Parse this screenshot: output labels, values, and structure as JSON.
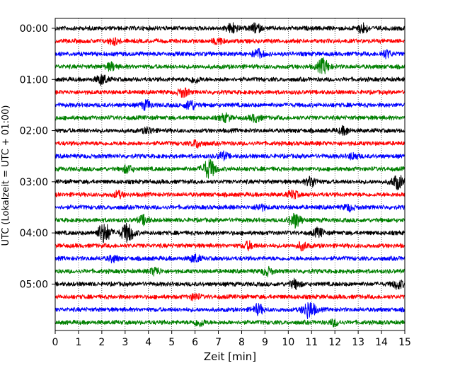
{
  "chart_data": {
    "type": "line",
    "title": "",
    "xlabel": "Zeit  [min]",
    "ylabel": "UTC (Lokalzeit = UTC + 01:00)",
    "xlim": [
      0,
      15
    ],
    "x_ticks": [
      "0",
      "1",
      "2",
      "3",
      "4",
      "5",
      "6",
      "7",
      "8",
      "9",
      "10",
      "11",
      "12",
      "13",
      "14",
      "15"
    ],
    "y_ticks": [
      "00:00",
      "01:00",
      "02:00",
      "03:00",
      "04:00",
      "05:00"
    ],
    "grid": "vertical dotted",
    "trace_colors": [
      "#000000",
      "#ff0000",
      "#0000ff",
      "#008000"
    ],
    "series": [
      {
        "start": "00:00",
        "color": "#000000",
        "events": [
          {
            "x": 7.6,
            "a": 0.4
          },
          {
            "x": 8.6,
            "a": 0.35
          },
          {
            "x": 13.2,
            "a": 0.4
          }
        ]
      },
      {
        "start": "00:15",
        "color": "#ff0000",
        "events": [
          {
            "x": 2.5,
            "a": 0.25
          },
          {
            "x": 7.0,
            "a": 0.25
          }
        ]
      },
      {
        "start": "00:30",
        "color": "#0000ff",
        "events": [
          {
            "x": 8.7,
            "a": 0.35
          },
          {
            "x": 14.2,
            "a": 0.3
          }
        ]
      },
      {
        "start": "00:45",
        "color": "#008000",
        "events": [
          {
            "x": 2.4,
            "a": 0.3
          },
          {
            "x": 11.5,
            "a": 0.6
          }
        ]
      },
      {
        "start": "01:00",
        "color": "#000000",
        "events": [
          {
            "x": 2.0,
            "a": 0.4
          },
          {
            "x": 6.0,
            "a": 0.25
          }
        ]
      },
      {
        "start": "01:15",
        "color": "#ff0000",
        "events": [
          {
            "x": 5.5,
            "a": 0.35
          }
        ]
      },
      {
        "start": "01:30",
        "color": "#0000ff",
        "events": [
          {
            "x": 3.9,
            "a": 0.35
          },
          {
            "x": 5.8,
            "a": 0.4
          }
        ]
      },
      {
        "start": "01:45",
        "color": "#008000",
        "events": [
          {
            "x": 7.3,
            "a": 0.3
          },
          {
            "x": 8.6,
            "a": 0.3
          }
        ]
      },
      {
        "start": "02:00",
        "color": "#000000",
        "events": [
          {
            "x": 4.0,
            "a": 0.25
          },
          {
            "x": 12.4,
            "a": 0.3
          }
        ]
      },
      {
        "start": "02:15",
        "color": "#ff0000",
        "events": [
          {
            "x": 6.1,
            "a": 0.3
          }
        ]
      },
      {
        "start": "02:30",
        "color": "#0000ff",
        "events": [
          {
            "x": 7.2,
            "a": 0.3
          },
          {
            "x": 12.8,
            "a": 0.25
          }
        ]
      },
      {
        "start": "02:45",
        "color": "#008000",
        "events": [
          {
            "x": 6.6,
            "a": 0.75
          },
          {
            "x": 3.1,
            "a": 0.3
          }
        ]
      },
      {
        "start": "03:00",
        "color": "#000000",
        "events": [
          {
            "x": 11.0,
            "a": 0.4
          },
          {
            "x": 14.7,
            "a": 0.55
          }
        ]
      },
      {
        "start": "03:15",
        "color": "#ff0000",
        "events": [
          {
            "x": 2.7,
            "a": 0.25
          },
          {
            "x": 10.2,
            "a": 0.3
          }
        ]
      },
      {
        "start": "03:30",
        "color": "#0000ff",
        "events": [
          {
            "x": 8.8,
            "a": 0.25
          },
          {
            "x": 12.6,
            "a": 0.25
          }
        ]
      },
      {
        "start": "03:45",
        "color": "#008000",
        "events": [
          {
            "x": 10.3,
            "a": 0.6
          },
          {
            "x": 3.8,
            "a": 0.35
          }
        ]
      },
      {
        "start": "04:00",
        "color": "#000000",
        "events": [
          {
            "x": 2.1,
            "a": 0.8
          },
          {
            "x": 3.1,
            "a": 0.75
          },
          {
            "x": 11.3,
            "a": 0.35
          }
        ]
      },
      {
        "start": "04:15",
        "color": "#ff0000",
        "events": [
          {
            "x": 8.3,
            "a": 0.3
          },
          {
            "x": 10.6,
            "a": 0.3
          }
        ]
      },
      {
        "start": "04:30",
        "color": "#0000ff",
        "events": [
          {
            "x": 6.0,
            "a": 0.3
          },
          {
            "x": 2.5,
            "a": 0.25
          }
        ]
      },
      {
        "start": "04:45",
        "color": "#008000",
        "events": [
          {
            "x": 4.3,
            "a": 0.3
          },
          {
            "x": 9.1,
            "a": 0.3
          }
        ]
      },
      {
        "start": "05:00",
        "color": "#000000",
        "events": [
          {
            "x": 10.3,
            "a": 0.35
          },
          {
            "x": 14.7,
            "a": 0.35
          }
        ]
      },
      {
        "start": "05:15",
        "color": "#ff0000",
        "events": [
          {
            "x": 6.0,
            "a": 0.25
          }
        ]
      },
      {
        "start": "05:30",
        "color": "#0000ff",
        "events": [
          {
            "x": 10.9,
            "a": 0.7
          },
          {
            "x": 8.7,
            "a": 0.4
          }
        ]
      },
      {
        "start": "05:45",
        "color": "#008000",
        "events": [
          {
            "x": 6.2,
            "a": 0.3
          },
          {
            "x": 12.0,
            "a": 0.25
          }
        ]
      }
    ]
  }
}
